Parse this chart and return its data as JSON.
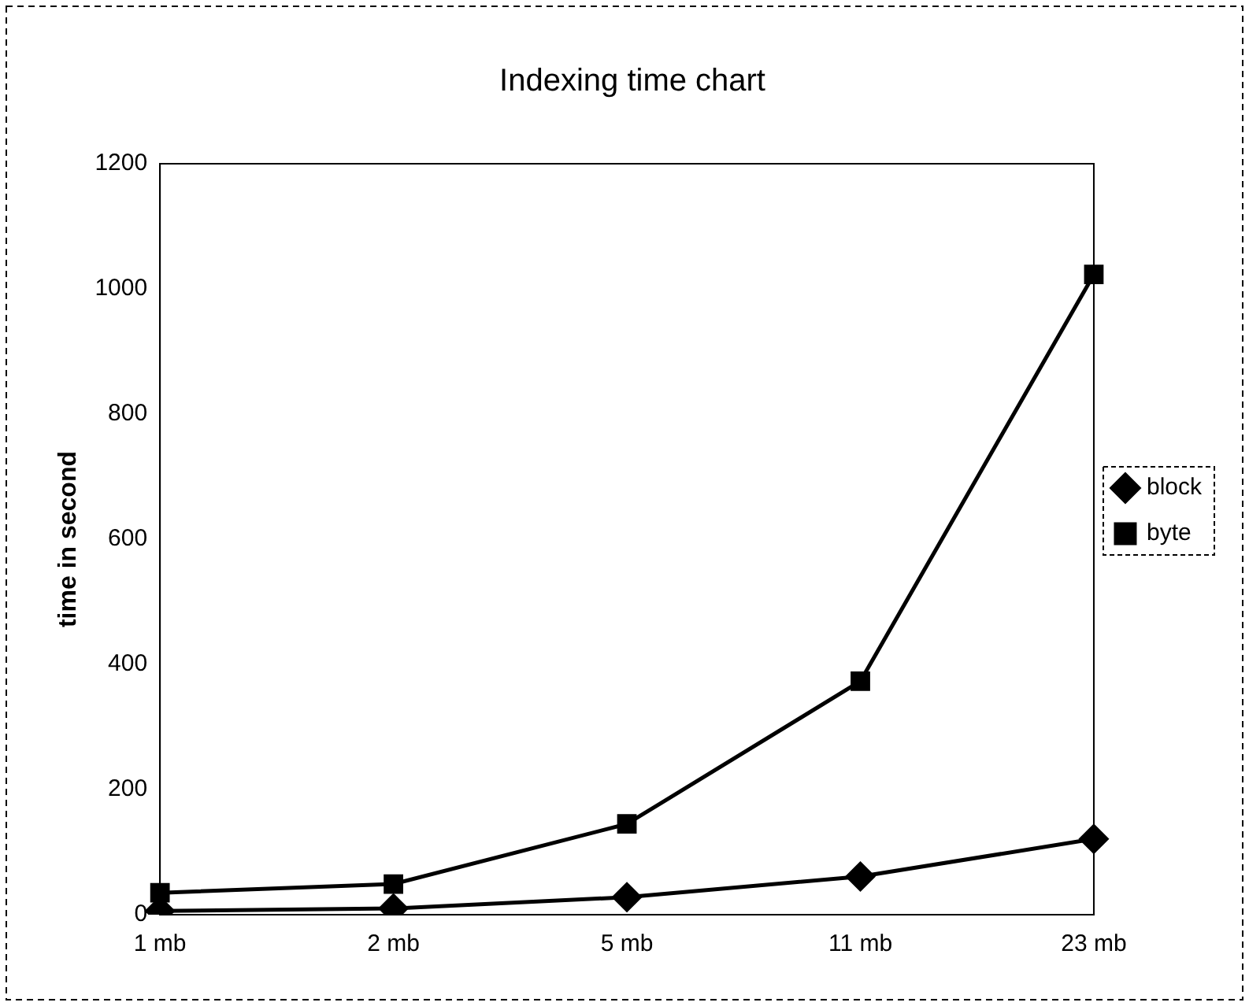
{
  "chart_data": {
    "type": "line",
    "title": "Indexing time chart",
    "ylabel": "time in second",
    "categories": [
      "1 mb",
      "2 mb",
      "5 mb",
      "11 mb",
      "23 mb"
    ],
    "series": [
      {
        "name": "block",
        "color": "#000000",
        "marker": "diamond",
        "values": [
          6,
          10,
          28,
          61,
          121
        ]
      },
      {
        "name": "byte",
        "color": "#000000",
        "marker": "square",
        "values": [
          35,
          49,
          145,
          373,
          1023
        ]
      }
    ],
    "ylim": [
      0,
      1200
    ],
    "yticks": [
      0,
      200,
      400,
      600,
      800,
      1000,
      1200
    ],
    "grid": false,
    "legend": "right",
    "line_style": "solid"
  }
}
